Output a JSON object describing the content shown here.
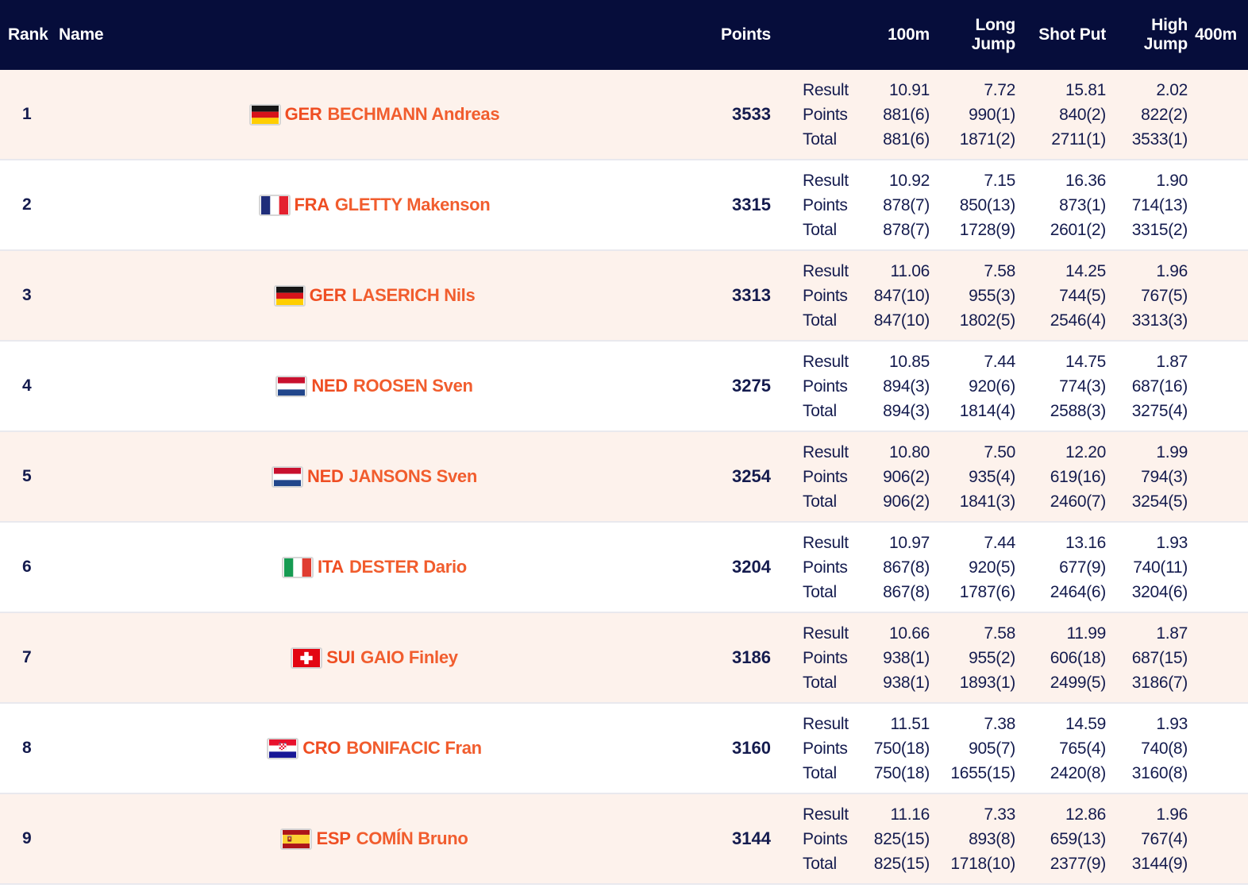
{
  "colors": {
    "header_bg": "#060d3b",
    "row_alt_bg": "#fdf2ec",
    "text_navy": "#141b4e",
    "accent_orange": "#f15d2e",
    "separator": "#e9e9ee"
  },
  "table": {
    "columns": {
      "rank": "Rank",
      "name": "Name",
      "points": "Points",
      "m100": "100m",
      "long_jump": "Long Jump",
      "shot_put": "Shot Put",
      "high_jump": "High Jump",
      "m400": "400m"
    },
    "row_labels": [
      "Result",
      "Points",
      "Total"
    ],
    "athletes": [
      {
        "rank": "1",
        "country": "GER",
        "name": "BECHMANN Andreas",
        "points": "3533",
        "result": [
          "10.91",
          "7.72",
          "15.81",
          "2.02"
        ],
        "event_points": [
          "881(6)",
          "990(1)",
          "840(2)",
          "822(2)"
        ],
        "total": [
          "881(6)",
          "1871(2)",
          "2711(1)",
          "3533(1)"
        ]
      },
      {
        "rank": "2",
        "country": "FRA",
        "name": "GLETTY Makenson",
        "points": "3315",
        "result": [
          "10.92",
          "7.15",
          "16.36",
          "1.90"
        ],
        "event_points": [
          "878(7)",
          "850(13)",
          "873(1)",
          "714(13)"
        ],
        "total": [
          "878(7)",
          "1728(9)",
          "2601(2)",
          "3315(2)"
        ]
      },
      {
        "rank": "3",
        "country": "GER",
        "name": "LASERICH Nils",
        "points": "3313",
        "result": [
          "11.06",
          "7.58",
          "14.25",
          "1.96"
        ],
        "event_points": [
          "847(10)",
          "955(3)",
          "744(5)",
          "767(5)"
        ],
        "total": [
          "847(10)",
          "1802(5)",
          "2546(4)",
          "3313(3)"
        ]
      },
      {
        "rank": "4",
        "country": "NED",
        "name": "ROOSEN Sven",
        "points": "3275",
        "result": [
          "10.85",
          "7.44",
          "14.75",
          "1.87"
        ],
        "event_points": [
          "894(3)",
          "920(6)",
          "774(3)",
          "687(16)"
        ],
        "total": [
          "894(3)",
          "1814(4)",
          "2588(3)",
          "3275(4)"
        ]
      },
      {
        "rank": "5",
        "country": "NED",
        "name": "JANSONS Sven",
        "points": "3254",
        "result": [
          "10.80",
          "7.50",
          "12.20",
          "1.99"
        ],
        "event_points": [
          "906(2)",
          "935(4)",
          "619(16)",
          "794(3)"
        ],
        "total": [
          "906(2)",
          "1841(3)",
          "2460(7)",
          "3254(5)"
        ]
      },
      {
        "rank": "6",
        "country": "ITA",
        "name": "DESTER Dario",
        "points": "3204",
        "result": [
          "10.97",
          "7.44",
          "13.16",
          "1.93"
        ],
        "event_points": [
          "867(8)",
          "920(5)",
          "677(9)",
          "740(11)"
        ],
        "total": [
          "867(8)",
          "1787(6)",
          "2464(6)",
          "3204(6)"
        ]
      },
      {
        "rank": "7",
        "country": "SUI",
        "name": "GAIO Finley",
        "points": "3186",
        "result": [
          "10.66",
          "7.58",
          "11.99",
          "1.87"
        ],
        "event_points": [
          "938(1)",
          "955(2)",
          "606(18)",
          "687(15)"
        ],
        "total": [
          "938(1)",
          "1893(1)",
          "2499(5)",
          "3186(7)"
        ]
      },
      {
        "rank": "8",
        "country": "CRO",
        "name": "BONIFACIC Fran",
        "points": "3160",
        "result": [
          "11.51",
          "7.38",
          "14.59",
          "1.93"
        ],
        "event_points": [
          "750(18)",
          "905(7)",
          "765(4)",
          "740(8)"
        ],
        "total": [
          "750(18)",
          "1655(15)",
          "2420(8)",
          "3160(8)"
        ]
      },
      {
        "rank": "9",
        "country": "ESP",
        "name": "COMÍN Bruno",
        "points": "3144",
        "result": [
          "11.16",
          "7.33",
          "12.86",
          "1.96"
        ],
        "event_points": [
          "825(15)",
          "893(8)",
          "659(13)",
          "767(4)"
        ],
        "total": [
          "825(15)",
          "1718(10)",
          "2377(9)",
          "3144(9)"
        ]
      }
    ]
  }
}
